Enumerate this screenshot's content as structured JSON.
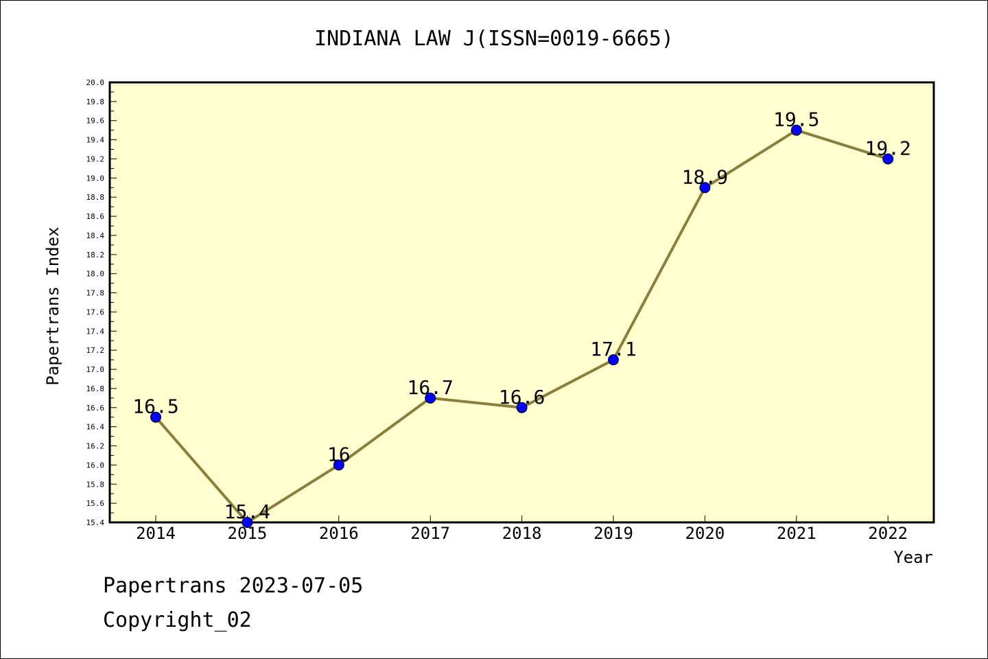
{
  "chart_data": {
    "type": "line",
    "title": "INDIANA LAW J(ISSN=0019-6665)",
    "xlabel": "Year",
    "ylabel": "Papertrans Index",
    "x": [
      "2014",
      "2015",
      "2016",
      "2017",
      "2018",
      "2019",
      "2020",
      "2021",
      "2022"
    ],
    "series": [
      {
        "values": [
          16.5,
          15.4,
          16.0,
          16.7,
          16.6,
          17.1,
          18.9,
          19.5,
          19.2
        ],
        "data_labels": [
          "16.5",
          "15.4",
          "16",
          "16.7",
          "16.6",
          "17.1",
          "18.9",
          "19.5",
          "19.2"
        ]
      }
    ],
    "ylim": [
      15.4,
      20.0
    ],
    "yticks": [
      "15.4",
      "15.6",
      "15.8",
      "16.0",
      "16.2",
      "16.4",
      "16.6",
      "16.8",
      "17.0",
      "17.2",
      "17.4",
      "17.6",
      "17.8",
      "18.0",
      "18.2",
      "18.4",
      "18.6",
      "18.8",
      "19.0",
      "19.2",
      "19.4",
      "19.6",
      "19.8",
      "20.0"
    ],
    "grid": false,
    "colors": {
      "plot_bg": "#ffffd0",
      "line": "#8b7d3a",
      "marker": "#0000ff"
    }
  },
  "footer": {
    "stamp": "Papertrans 2023-07-05",
    "copyright": "Copyright_02"
  }
}
